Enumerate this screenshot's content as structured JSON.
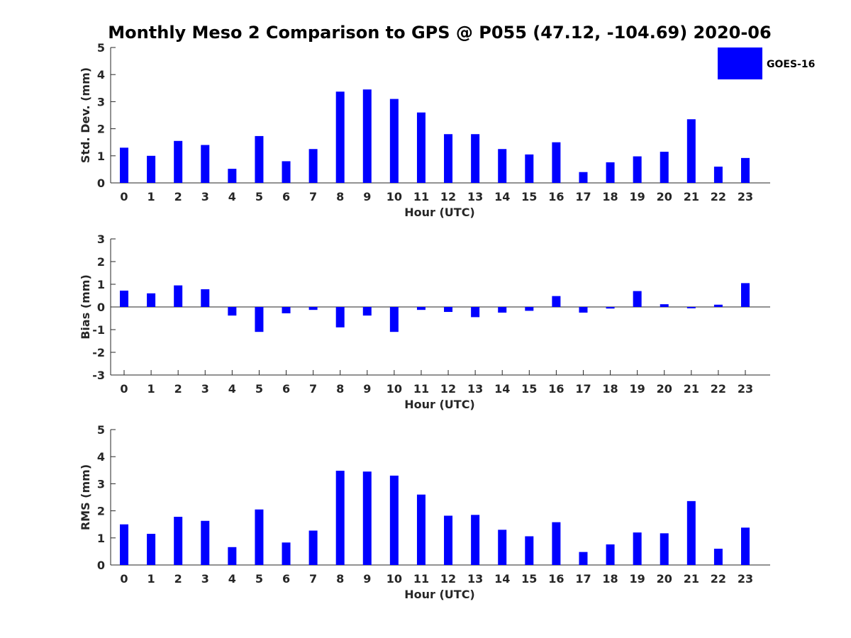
{
  "chart_data": {
    "title": "Monthly Meso 2 Comparison to GPS @ P055 (47.12, -104.69) 2020-06",
    "legend": {
      "entries": [
        "GOES-16"
      ],
      "placement": "top-right"
    },
    "color": "#0000ff",
    "panels": [
      {
        "type": "bar",
        "xlabel": "Hour (UTC)",
        "ylabel": "Std. Dev. (mm)",
        "ylim": [
          0,
          5
        ],
        "yticks": [
          "0",
          "1",
          "2",
          "3",
          "4",
          "5"
        ],
        "categories": [
          "0",
          "1",
          "2",
          "3",
          "4",
          "5",
          "6",
          "7",
          "8",
          "9",
          "10",
          "11",
          "12",
          "13",
          "14",
          "15",
          "16",
          "17",
          "18",
          "19",
          "20",
          "21",
          "22",
          "23"
        ],
        "series": [
          {
            "name": "GOES-16",
            "values": [
              1.3,
              1.0,
              1.55,
              1.4,
              0.52,
              1.73,
              0.8,
              1.25,
              3.37,
              3.45,
              3.1,
              2.6,
              1.8,
              1.8,
              1.25,
              1.05,
              1.5,
              0.4,
              0.76,
              0.98,
              1.15,
              2.35,
              0.6,
              0.92
            ]
          }
        ]
      },
      {
        "type": "bar",
        "xlabel": "Hour (UTC)",
        "ylabel": "Bias (mm)",
        "ylim": [
          -3,
          3
        ],
        "yticks": [
          "-3",
          "-2",
          "-1",
          "0",
          "1",
          "2",
          "3"
        ],
        "categories": [
          "0",
          "1",
          "2",
          "3",
          "4",
          "5",
          "6",
          "7",
          "8",
          "9",
          "10",
          "11",
          "12",
          "13",
          "14",
          "15",
          "16",
          "17",
          "18",
          "19",
          "20",
          "21",
          "22",
          "23"
        ],
        "series": [
          {
            "name": "GOES-16",
            "values": [
              0.72,
              0.6,
              0.95,
              0.78,
              -0.38,
              -1.1,
              -0.28,
              -0.13,
              -0.9,
              -0.38,
              -1.1,
              -0.13,
              -0.22,
              -0.45,
              -0.25,
              -0.17,
              0.48,
              -0.25,
              -0.07,
              0.7,
              0.12,
              -0.06,
              0.1,
              1.05
            ]
          }
        ]
      },
      {
        "type": "bar",
        "xlabel": "Hour (UTC)",
        "ylabel": "RMS (mm)",
        "ylim": [
          0,
          5
        ],
        "yticks": [
          "0",
          "1",
          "2",
          "3",
          "4",
          "5"
        ],
        "categories": [
          "0",
          "1",
          "2",
          "3",
          "4",
          "5",
          "6",
          "7",
          "8",
          "9",
          "10",
          "11",
          "12",
          "13",
          "14",
          "15",
          "16",
          "17",
          "18",
          "19",
          "20",
          "21",
          "22",
          "23"
        ],
        "series": [
          {
            "name": "GOES-16",
            "values": [
              1.5,
              1.15,
              1.78,
              1.63,
              0.66,
              2.05,
              0.83,
              1.27,
              3.48,
              3.45,
              3.3,
              2.6,
              1.82,
              1.85,
              1.3,
              1.06,
              1.58,
              0.48,
              0.76,
              1.2,
              1.17,
              2.36,
              0.6,
              1.38
            ]
          }
        ]
      }
    ]
  }
}
